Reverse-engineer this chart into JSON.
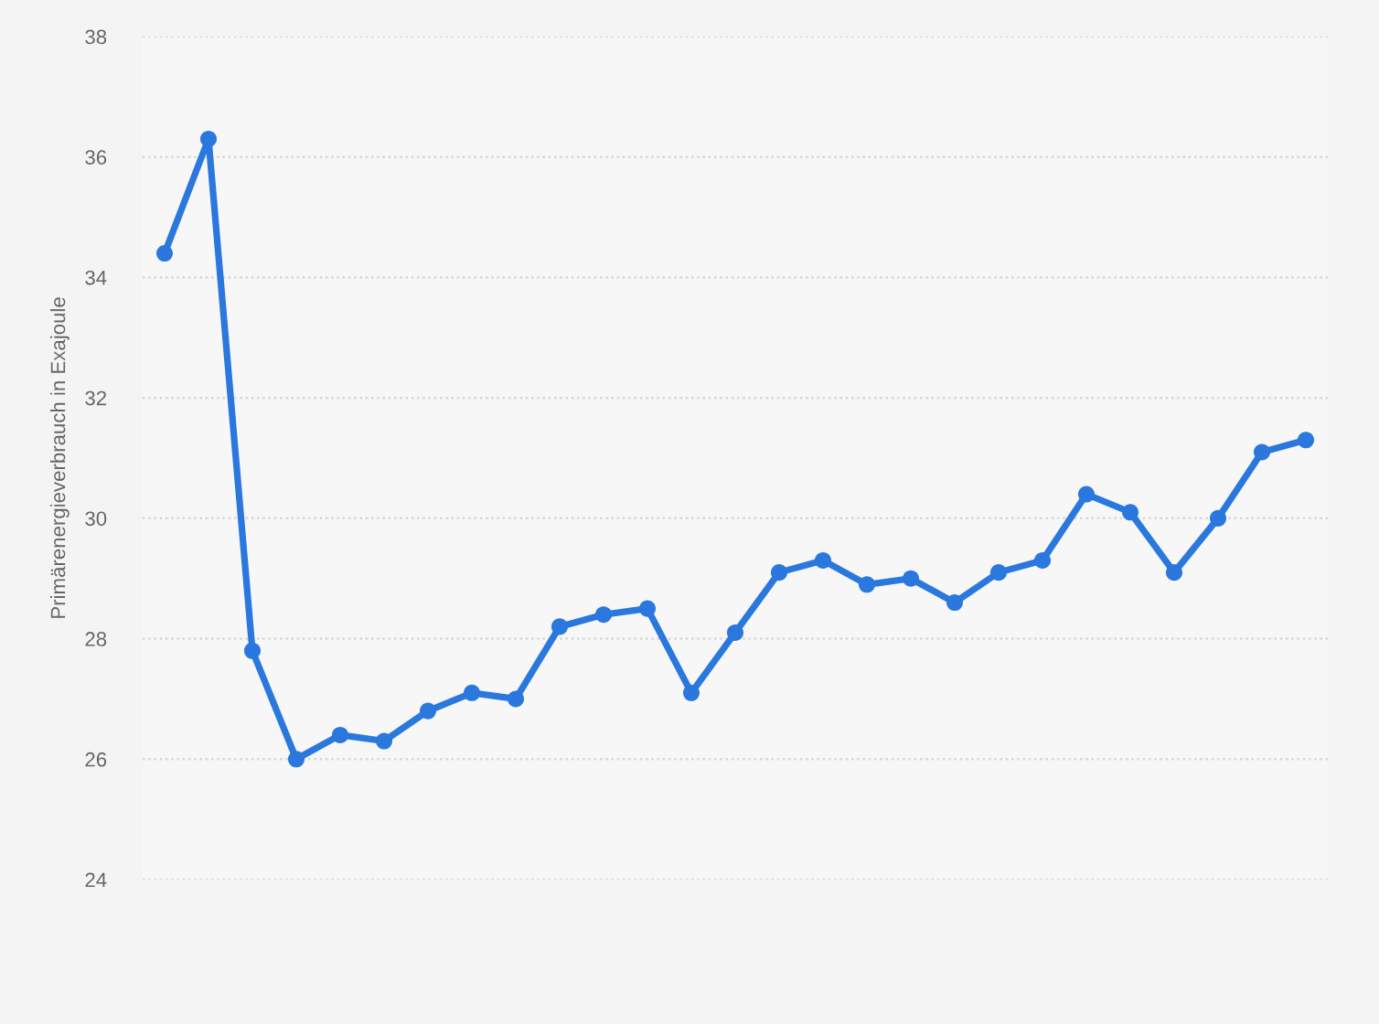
{
  "chart_data": {
    "type": "line",
    "ylabel": "Primärenergieverbrauch in Exajoule",
    "categories": [
      null,
      null,
      null,
      null,
      null,
      null,
      null,
      null,
      null,
      null,
      null,
      null,
      null,
      null,
      null,
      null,
      null,
      null,
      null,
      null,
      null,
      null,
      null,
      null,
      null,
      null,
      null
    ],
    "series": [
      {
        "color": "#2a78de",
        "values": [
          34.4,
          36.3,
          27.8,
          26.0,
          26.4,
          26.3,
          26.8,
          27.1,
          27.0,
          28.2,
          28.4,
          28.5,
          27.1,
          28.1,
          29.1,
          29.3,
          28.9,
          29.0,
          28.6,
          29.1,
          29.3,
          30.4,
          30.1,
          29.1,
          30.0,
          31.1,
          31.3
        ]
      }
    ],
    "ylim": [
      24,
      38
    ],
    "yticks": [
      24,
      26,
      28,
      30,
      32,
      34,
      36,
      38
    ],
    "grid": "y",
    "marker": "circle",
    "line_style": "solid",
    "tick_labels": "y"
  }
}
